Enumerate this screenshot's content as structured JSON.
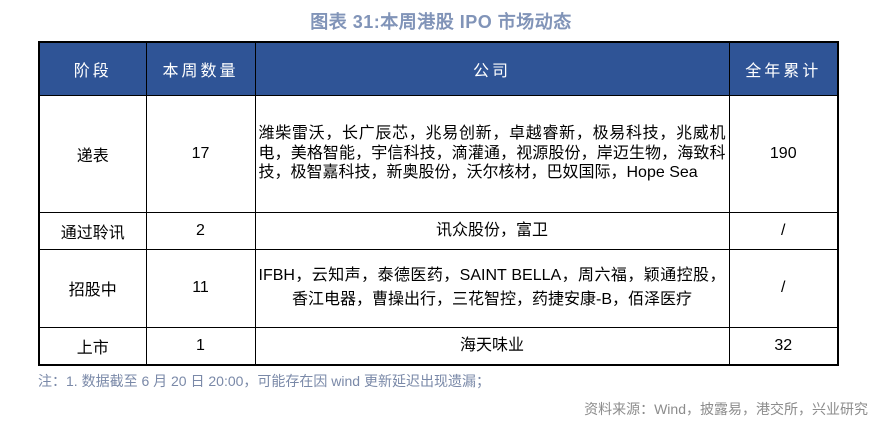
{
  "title": {
    "text": "图表 31:本周港股 IPO 市场动态"
  },
  "colors": {
    "header_bg": "#2F5496",
    "header_text": "#FFFFFF",
    "title_color": "#8194B8",
    "note_color": "#7A89A8",
    "source_color": "#8C8C8C",
    "border_color": "#000000"
  },
  "chart_data": {
    "type": "table",
    "title": "图表 31:本周港股 IPO 市场动态",
    "columns": [
      "阶段",
      "本周数量",
      "公司",
      "全年累计"
    ],
    "rows": [
      {
        "stage": "递表",
        "week_count": "17",
        "companies": "潍柴雷沃，长广辰芯，兆易创新，卓越睿新，极易科技，兆威机电，美格智能，宇信科技，滴灌通，视源股份，岸迈生物，海致科技，极智嘉科技，新奥股份，沃尔核材，巴奴国际，Hope Sea",
        "ytd_total": "190"
      },
      {
        "stage": "通过聆讯",
        "week_count": "2",
        "companies": "讯众股份，富卫",
        "ytd_total": "/"
      },
      {
        "stage": "招股中",
        "week_count": "11",
        "companies": "IFBH，云知声，泰德医药，SAINT BELLA，周六福，颖通控股，香江电器，曹操出行，三花智控，药捷安康-B，佰泽医疗",
        "ytd_total": "/"
      },
      {
        "stage": "上市",
        "week_count": "1",
        "companies": "海天味业",
        "ytd_total": "32"
      }
    ]
  },
  "footer": {
    "note": "注：1. 数据截至 6 月 20 日 20:00，可能存在因 wind 更新延迟出现遗漏；",
    "source": "资料来源：Wind，披露易，港交所，兴业研究"
  }
}
